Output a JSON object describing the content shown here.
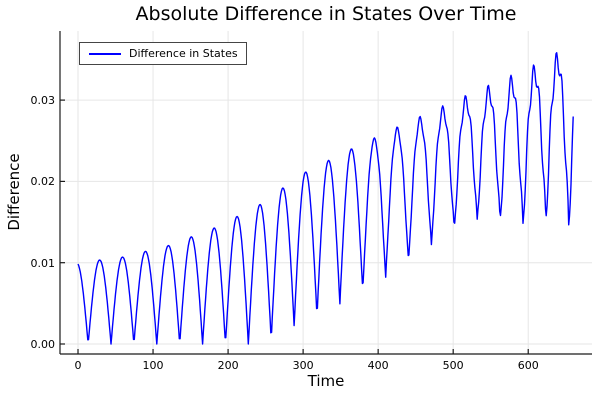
{
  "chart_data": {
    "type": "line",
    "title": "Absolute Difference in States Over Time",
    "xlabel": "Time",
    "ylabel": "Difference",
    "legend": {
      "position": "top-left",
      "entries": [
        "Difference in States"
      ]
    },
    "xlim": [
      -24,
      685
    ],
    "ylim": [
      -0.00123,
      0.0385
    ],
    "xticks": [
      0,
      100,
      200,
      300,
      400,
      500,
      600
    ],
    "yticks": [
      {
        "v": 0.0,
        "label": "0.00"
      },
      {
        "v": 0.01,
        "label": "0.01"
      },
      {
        "v": 0.02,
        "label": "0.02"
      },
      {
        "v": 0.03,
        "label": "0.03"
      }
    ],
    "grid": true,
    "frame": "left-bottom-spines",
    "colors": {
      "line": "#0000ff",
      "grid": "#e6e6e6",
      "axis": "#1a1a1a",
      "text": "#000000",
      "legend_border": "#454545",
      "background": "#ffffff"
    },
    "series": [
      {
        "name": "Difference in States",
        "color": "#0000ff",
        "x_start": 0,
        "x_end": 660,
        "x_step": 1,
        "description": "Absolute difference oscillation: touches 0 every ~30 time units early on; peak envelope grows from 0.010 at t=0 to ~0.037 at t=650; trough floor lifts off 0 after t~250 rising to ~0.014; increasingly jagged ripple after t~360.",
        "model": {
          "form": "d(t) = floor(t) + (peak(t)-floor(t)) * |cos(pi*(t+phase_shift)/period)| + ripple(t)*sin(ripple_freq*t+ripple_phase)",
          "period": 30.5,
          "phase_shift": 1.75,
          "peak_envelope": [
            [
              0,
              0.01
            ],
            [
              60,
              0.0107
            ],
            [
              120,
              0.0121
            ],
            [
              180,
              0.0142
            ],
            [
              240,
              0.017
            ],
            [
              300,
              0.021
            ],
            [
              360,
              0.0238
            ],
            [
              420,
              0.0262
            ],
            [
              480,
              0.0285
            ],
            [
              540,
              0.0308
            ],
            [
              600,
              0.033
            ],
            [
              630,
              0.0345
            ],
            [
              660,
              0.0358
            ]
          ],
          "trough_floor": [
            [
              0,
              0.0
            ],
            [
              250,
              0.0
            ],
            [
              280,
              0.002
            ],
            [
              310,
              0.003
            ],
            [
              340,
              0.0045
            ],
            [
              370,
              0.006
            ],
            [
              400,
              0.0075
            ],
            [
              430,
              0.009
            ],
            [
              460,
              0.011
            ],
            [
              490,
              0.013
            ],
            [
              520,
              0.0145
            ],
            [
              550,
              0.015
            ],
            [
              580,
              0.014
            ],
            [
              610,
              0.0145
            ],
            [
              640,
              0.015
            ],
            [
              660,
              0.014
            ]
          ],
          "ripple_onset": 360,
          "ripple_growth": 4.5e-06,
          "ripple_freq": 0.83,
          "ripple_phase": 0.4
        }
      }
    ]
  }
}
